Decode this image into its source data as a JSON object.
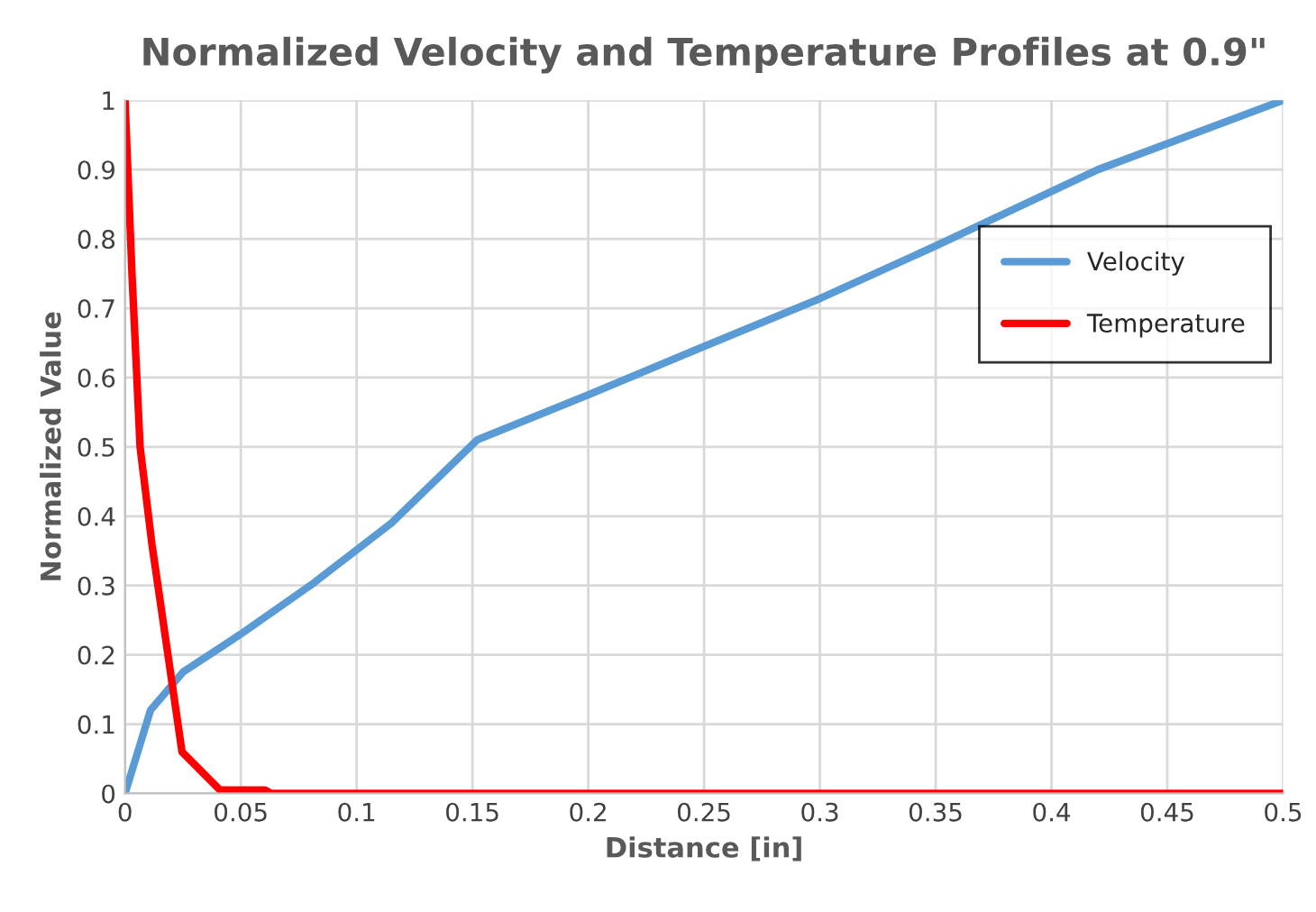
{
  "chart_data": {
    "type": "line",
    "title": "Normalized Velocity and Temperature Profiles at 0.9\"",
    "xlabel": "Distance [in]",
    "ylabel": "Normalized Value",
    "series": [
      {
        "name": "Velocity",
        "color": "#5b9bd5",
        "x": [
          0,
          0.011,
          0.025,
          0.05,
          0.08,
          0.115,
          0.152,
          0.2,
          0.25,
          0.3,
          0.35,
          0.42,
          0.5
        ],
        "values": [
          0,
          0.12,
          0.175,
          0.23,
          0.3,
          0.39,
          0.51,
          0.575,
          0.645,
          0.714,
          0.79,
          0.9,
          1
        ]
      },
      {
        "name": "Temperature",
        "color": "#ff0000",
        "x": [
          0,
          0.003,
          0.0065,
          0.0116,
          0.0246,
          0.041,
          0.0605,
          0.063,
          0.5
        ],
        "values": [
          1,
          0.75,
          0.5,
          0.36,
          0.06,
          0.005,
          0.005,
          0,
          0
        ]
      }
    ],
    "xlim": [
      0,
      0.5
    ],
    "xticks": [
      0,
      0.05,
      0.1,
      0.15,
      0.2,
      0.25,
      0.3,
      0.35,
      0.4,
      0.45,
      0.5
    ],
    "ylim": [
      0,
      1
    ],
    "yticks": [
      0,
      0.1,
      0.2,
      0.3,
      0.4,
      0.5,
      0.6,
      0.7,
      0.8,
      0.9,
      1
    ],
    "grid": true,
    "legend": "right",
    "marker": "none",
    "line_style": "solid"
  }
}
